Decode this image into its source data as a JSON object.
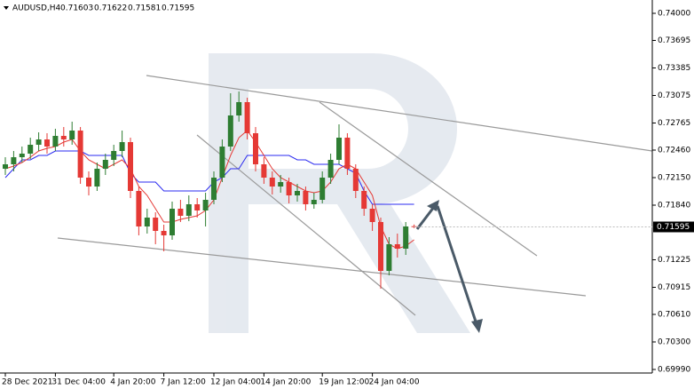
{
  "chart_data": {
    "type": "candlestick",
    "title": "AUDUSD,H4",
    "header_values": [
      0.71603,
      0.71622,
      0.71581,
      0.71595
    ],
    "last_price": 0.71595,
    "up_color": "#2e7d32",
    "down_color": "#e53935",
    "categories": [
      "28 Dec 2021",
      null,
      null,
      null,
      null,
      null,
      "31 Dec 04:00",
      null,
      null,
      null,
      null,
      null,
      null,
      "4 Jan 20:00",
      null,
      null,
      null,
      null,
      null,
      "7 Jan 12:00",
      null,
      null,
      null,
      null,
      null,
      "12 Jan 04:00",
      null,
      null,
      null,
      null,
      null,
      "14 Jan 20:00",
      null,
      null,
      null,
      null,
      null,
      null,
      "19 Jan 12:00",
      null,
      null,
      null,
      null,
      null,
      "24 Jan 04:00",
      null,
      null,
      null,
      null,
      null
    ],
    "open": [
      0.7225,
      0.723,
      0.7238,
      0.7242,
      0.7252,
      0.7258,
      0.725,
      0.7262,
      0.7258,
      0.7268,
      0.7215,
      0.7205,
      0.7225,
      0.7235,
      0.7245,
      0.7255,
      0.72,
      0.716,
      0.717,
      0.7155,
      0.715,
      0.718,
      0.7172,
      0.7185,
      0.7178,
      0.719,
      0.7215,
      0.725,
      0.7285,
      0.73,
      0.7265,
      0.723,
      0.7215,
      0.7205,
      0.721,
      0.7195,
      0.72,
      0.7185,
      0.719,
      0.7215,
      0.7235,
      0.726,
      0.7225,
      0.72,
      0.718,
      0.7165,
      0.711,
      0.714,
      0.7135,
      0.71603
    ],
    "high": [
      0.7238,
      0.7245,
      0.725,
      0.726,
      0.7266,
      0.7265,
      0.727,
      0.7272,
      0.7278,
      0.7272,
      0.7222,
      0.7232,
      0.7242,
      0.7252,
      0.7268,
      0.726,
      0.7205,
      0.718,
      0.7176,
      0.7162,
      0.7188,
      0.719,
      0.7195,
      0.7192,
      0.7198,
      0.7222,
      0.7258,
      0.731,
      0.7312,
      0.7305,
      0.7272,
      0.7238,
      0.7222,
      0.7218,
      0.7215,
      0.7208,
      0.7205,
      0.7198,
      0.7222,
      0.7242,
      0.7275,
      0.7265,
      0.723,
      0.7205,
      0.7185,
      0.717,
      0.7148,
      0.7152,
      0.7165,
      0.71622
    ],
    "low": [
      0.7218,
      0.7222,
      0.7232,
      0.7236,
      0.7245,
      0.7242,
      0.7245,
      0.725,
      0.7252,
      0.7208,
      0.7195,
      0.72,
      0.7218,
      0.7228,
      0.7238,
      0.7192,
      0.715,
      0.7152,
      0.714,
      0.7132,
      0.7145,
      0.7165,
      0.7166,
      0.717,
      0.716,
      0.7185,
      0.721,
      0.7245,
      0.7278,
      0.7258,
      0.7222,
      0.7208,
      0.7196,
      0.7198,
      0.7186,
      0.7188,
      0.7178,
      0.718,
      0.7186,
      0.7208,
      0.723,
      0.7218,
      0.7192,
      0.7172,
      0.7155,
      0.709,
      0.7105,
      0.7125,
      0.7128,
      0.71581
    ],
    "close": [
      0.723,
      0.7238,
      0.7242,
      0.7252,
      0.7258,
      0.725,
      0.7262,
      0.7258,
      0.7268,
      0.7215,
      0.7205,
      0.7225,
      0.7235,
      0.7245,
      0.7255,
      0.72,
      0.716,
      0.717,
      0.7155,
      0.715,
      0.718,
      0.7172,
      0.7185,
      0.7178,
      0.719,
      0.7215,
      0.725,
      0.7285,
      0.73,
      0.7265,
      0.723,
      0.7215,
      0.7205,
      0.721,
      0.7195,
      0.72,
      0.7185,
      0.719,
      0.7215,
      0.7235,
      0.726,
      0.7225,
      0.72,
      0.718,
      0.7165,
      0.711,
      0.714,
      0.7135,
      0.716,
      0.71595
    ],
    "series": [
      {
        "color": "#2b2bf0",
        "values": [
          0.7215,
          0.7225,
          0.7235,
          0.7235,
          0.724,
          0.724,
          0.7245,
          0.7245,
          0.7245,
          0.7245,
          0.724,
          0.724,
          0.724,
          0.724,
          0.724,
          0.722,
          0.721,
          0.721,
          0.721,
          0.72,
          0.72,
          0.72,
          0.72,
          0.72,
          0.72,
          0.721,
          0.7215,
          0.7225,
          0.7225,
          0.724,
          0.724,
          0.724,
          0.724,
          0.724,
          0.724,
          0.7235,
          0.7235,
          0.723,
          0.723,
          0.723,
          0.723,
          0.7225,
          0.722,
          0.72,
          0.7185,
          0.7185,
          0.7185,
          0.7185,
          0.7185,
          0.7185
        ]
      },
      {
        "color": "#e53935",
        "values": [
          0.7225,
          0.7228,
          0.7232,
          0.7238,
          0.7245,
          0.7248,
          0.725,
          0.7255,
          0.7258,
          0.7245,
          0.7235,
          0.723,
          0.7225,
          0.723,
          0.7235,
          0.7225,
          0.7205,
          0.7195,
          0.718,
          0.7165,
          0.7165,
          0.7168,
          0.717,
          0.7172,
          0.7178,
          0.719,
          0.7215,
          0.724,
          0.726,
          0.7268,
          0.7255,
          0.724,
          0.7225,
          0.7215,
          0.721,
          0.7205,
          0.72,
          0.7198,
          0.72,
          0.721,
          0.7225,
          0.723,
          0.7225,
          0.721,
          0.7195,
          0.716,
          0.714,
          0.7135,
          0.7138,
          0.7145
        ]
      }
    ],
    "ylim": [
      0.6995,
      0.7415
    ],
    "yticks": [
      {
        "value": 0.74,
        "label": "0.74000"
      },
      {
        "value": 0.73695,
        "label": "0.73695"
      },
      {
        "value": 0.73385,
        "label": "0.73385"
      },
      {
        "value": 0.73075,
        "label": "0.73075"
      },
      {
        "value": 0.72765,
        "label": "0.72765"
      },
      {
        "value": 0.7246,
        "label": "0.72460"
      },
      {
        "value": 0.7215,
        "label": "0.72150"
      },
      {
        "value": 0.7184,
        "label": "0.71840"
      },
      {
        "value": 0.71225,
        "label": "0.71225"
      },
      {
        "value": 0.70915,
        "label": "0.70915"
      },
      {
        "value": 0.7061,
        "label": "0.70610"
      },
      {
        "value": 0.703,
        "label": "0.70300"
      },
      {
        "value": 0.6999,
        "label": "0.69990"
      }
    ]
  }
}
